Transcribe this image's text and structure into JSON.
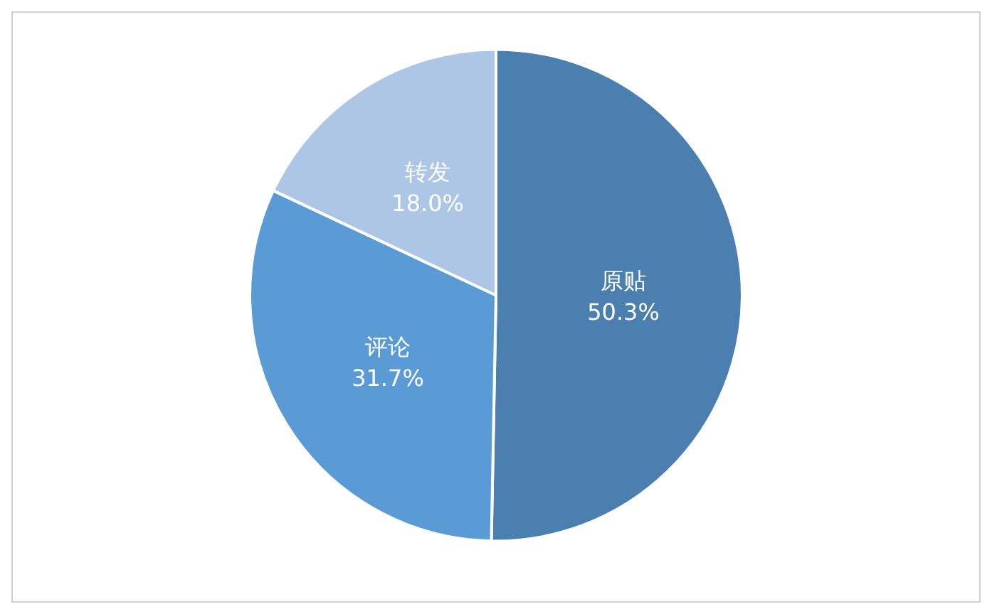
{
  "chart_data": {
    "type": "pie",
    "categories": [
      "原贴",
      "评论",
      "转发"
    ],
    "values": [
      50.3,
      31.7,
      18.0
    ],
    "colors": [
      "#4a7fb0",
      "#5b9bd5",
      "#adc6e5"
    ],
    "value_labels": [
      "50.3%",
      "31.7%",
      "18.0%"
    ],
    "legend": false
  }
}
